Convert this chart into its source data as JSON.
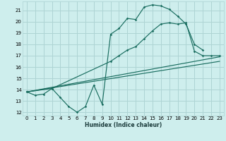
{
  "xlabel": "Humidex (Indice chaleur)",
  "xlim": [
    -0.5,
    23.5
  ],
  "ylim": [
    11.7,
    21.8
  ],
  "xticks": [
    0,
    1,
    2,
    3,
    4,
    5,
    6,
    7,
    8,
    9,
    10,
    11,
    12,
    13,
    14,
    15,
    16,
    17,
    18,
    19,
    20,
    21,
    22,
    23
  ],
  "yticks": [
    12,
    13,
    14,
    15,
    16,
    17,
    18,
    19,
    20,
    21
  ],
  "background_color": "#ceeeed",
  "grid_color": "#aed4d4",
  "line_color": "#1a6e60",
  "line1_x": [
    0,
    1,
    2,
    3,
    4,
    5,
    6,
    7,
    8,
    9,
    10,
    11,
    12,
    13,
    14,
    15,
    16,
    17,
    18,
    19,
    20,
    21
  ],
  "line1_y": [
    13.8,
    13.5,
    13.6,
    14.1,
    13.3,
    12.5,
    12.0,
    12.5,
    14.4,
    12.7,
    18.9,
    19.4,
    20.3,
    20.2,
    21.3,
    21.5,
    21.4,
    21.1,
    20.5,
    19.8,
    18.0,
    17.5
  ],
  "line2_x": [
    0,
    3,
    10,
    11,
    12,
    13,
    14,
    15,
    16,
    17,
    18,
    19,
    20,
    21,
    22,
    23
  ],
  "line2_y": [
    13.8,
    14.1,
    16.5,
    17.0,
    17.5,
    17.8,
    18.5,
    19.2,
    19.8,
    19.9,
    19.8,
    19.9,
    17.4,
    17.0,
    17.0,
    17.0
  ],
  "line3_x": [
    0,
    23
  ],
  "line3_y": [
    13.8,
    16.9
  ],
  "line4_x": [
    0,
    23
  ],
  "line4_y": [
    13.8,
    16.5
  ]
}
